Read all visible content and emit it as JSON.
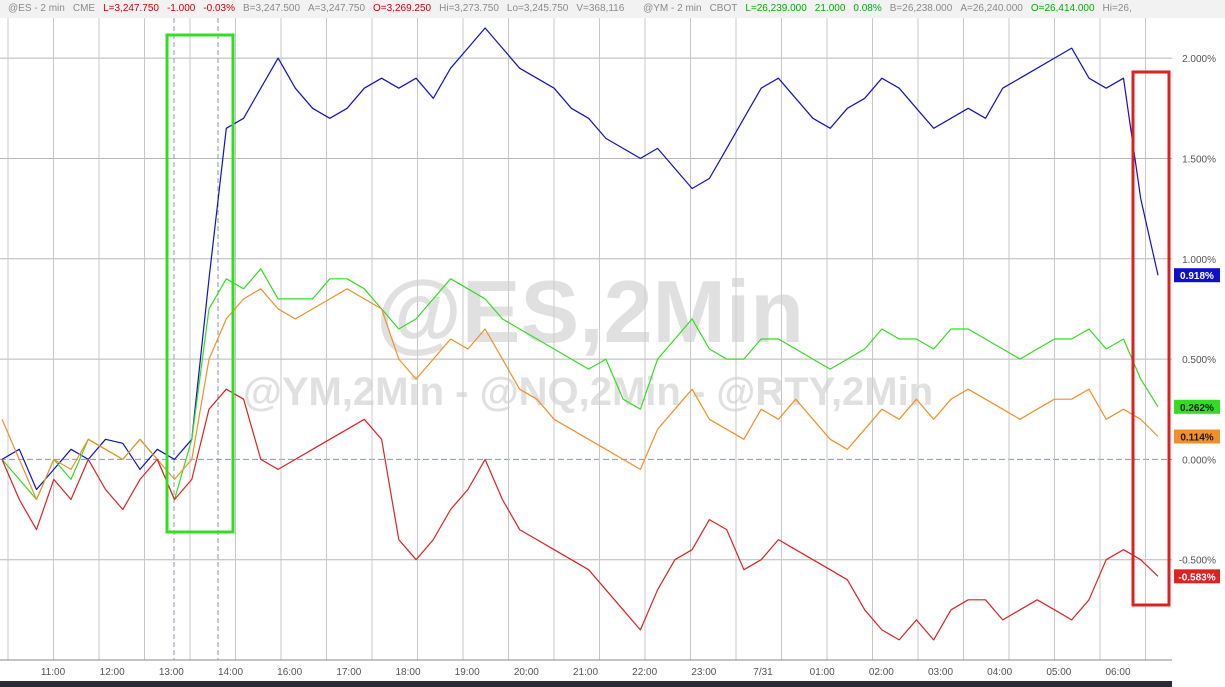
{
  "header": {
    "es_items": [
      {
        "text": "@ES - 2 min",
        "color": "gray"
      },
      {
        "text": "CME",
        "color": "gray"
      },
      {
        "text": "L=3,247.750",
        "color": "red"
      },
      {
        "text": "-1.000",
        "color": "red"
      },
      {
        "text": "-0.03%",
        "color": "red"
      },
      {
        "text": "B=3,247.500",
        "color": "gray"
      },
      {
        "text": "A=3,247.750",
        "color": "gray"
      },
      {
        "text": "O=3,269.250",
        "color": "red"
      },
      {
        "text": "Hi=3,273.750",
        "color": "gray"
      },
      {
        "text": "Lo=3,245.750",
        "color": "gray"
      },
      {
        "text": "V=368,116",
        "color": "gray"
      }
    ],
    "ym_items": [
      {
        "text": "@YM - 2 min",
        "color": "gray"
      },
      {
        "text": "CBOT",
        "color": "gray"
      },
      {
        "text": "L=26,239.000",
        "color": "green"
      },
      {
        "text": "21.000",
        "color": "green"
      },
      {
        "text": "0.08%",
        "color": "green"
      },
      {
        "text": "B=26,238.000",
        "color": "gray"
      },
      {
        "text": "A=26,240.000",
        "color": "gray"
      },
      {
        "text": "O=26,414.000",
        "color": "green"
      },
      {
        "text": "Hi=26,",
        "color": "gray"
      }
    ]
  },
  "watermark": {
    "line1": "@ES,2Min",
    "line2": "@YM,2Min - @NQ,2Min - @RTY,2Min"
  },
  "colors": {
    "es": "#1010c8",
    "ym": "#33dd22",
    "nq": "#f0902a",
    "rty": "#dd2222",
    "green_box": "#33dd22",
    "red_box": "#dd2020"
  },
  "chart_data": {
    "type": "line",
    "x_tick_labels": [
      "11:00",
      "12:00",
      "13:00",
      "14:00",
      "16:00",
      "17:00",
      "18:00",
      "19:00",
      "20:00",
      "21:00",
      "22:00",
      "23:00",
      "7/31",
      "01:00",
      "02:00",
      "03:00",
      "04:00",
      "05:00",
      "06:00"
    ],
    "y_tick_labels": [
      "2.000%",
      "1.500%",
      "1.000%",
      "0.500%",
      "0.000%",
      "-0.500%"
    ],
    "ylim": [
      -1.0,
      2.2
    ],
    "last_value_labels": {
      "es": "0.918%",
      "ym": "0.262%",
      "nq": "0.114%",
      "rty": "-0.583%"
    },
    "series": [
      {
        "key": "es",
        "values": [
          0.0,
          0.05,
          -0.15,
          -0.05,
          0.05,
          0.0,
          0.1,
          0.08,
          -0.05,
          0.05,
          0.0,
          0.1,
          0.9,
          1.65,
          1.7,
          1.85,
          2.0,
          1.85,
          1.75,
          1.7,
          1.75,
          1.85,
          1.9,
          1.85,
          1.9,
          1.8,
          1.95,
          2.05,
          2.15,
          2.05,
          1.95,
          1.9,
          1.85,
          1.75,
          1.7,
          1.6,
          1.55,
          1.5,
          1.55,
          1.45,
          1.35,
          1.4,
          1.55,
          1.7,
          1.85,
          1.9,
          1.8,
          1.7,
          1.65,
          1.75,
          1.8,
          1.9,
          1.85,
          1.75,
          1.65,
          1.7,
          1.75,
          1.7,
          1.85,
          1.9,
          1.95,
          2.0,
          2.05,
          1.9,
          1.85,
          1.9,
          1.3,
          0.918
        ]
      },
      {
        "key": "ym",
        "values": [
          0.0,
          -0.1,
          -0.2,
          0.0,
          -0.1,
          0.1,
          0.05,
          0.0,
          0.1,
          0.0,
          -0.2,
          0.1,
          0.75,
          0.9,
          0.85,
          0.95,
          0.8,
          0.8,
          0.8,
          0.9,
          0.9,
          0.85,
          0.75,
          0.65,
          0.7,
          0.8,
          0.9,
          0.85,
          0.8,
          0.7,
          0.65,
          0.6,
          0.55,
          0.5,
          0.45,
          0.5,
          0.3,
          0.25,
          0.5,
          0.6,
          0.7,
          0.55,
          0.5,
          0.5,
          0.6,
          0.6,
          0.55,
          0.5,
          0.45,
          0.5,
          0.55,
          0.65,
          0.6,
          0.6,
          0.55,
          0.65,
          0.65,
          0.6,
          0.55,
          0.5,
          0.55,
          0.6,
          0.6,
          0.65,
          0.55,
          0.6,
          0.4,
          0.262
        ]
      },
      {
        "key": "nq",
        "values": [
          0.2,
          0.0,
          -0.2,
          0.0,
          -0.05,
          0.1,
          0.05,
          0.0,
          0.1,
          0.0,
          -0.1,
          0.0,
          0.5,
          0.7,
          0.8,
          0.85,
          0.75,
          0.7,
          0.75,
          0.8,
          0.85,
          0.8,
          0.75,
          0.5,
          0.4,
          0.5,
          0.6,
          0.55,
          0.65,
          0.5,
          0.35,
          0.3,
          0.2,
          0.15,
          0.1,
          0.05,
          0.0,
          -0.05,
          0.15,
          0.25,
          0.35,
          0.2,
          0.15,
          0.1,
          0.25,
          0.2,
          0.3,
          0.2,
          0.1,
          0.05,
          0.15,
          0.25,
          0.2,
          0.3,
          0.2,
          0.3,
          0.35,
          0.3,
          0.25,
          0.2,
          0.25,
          0.3,
          0.3,
          0.35,
          0.2,
          0.25,
          0.2,
          0.114
        ]
      },
      {
        "key": "rty",
        "values": [
          0.0,
          -0.2,
          -0.35,
          -0.1,
          -0.2,
          0.0,
          -0.15,
          -0.25,
          -0.1,
          0.0,
          -0.2,
          -0.1,
          0.25,
          0.35,
          0.3,
          0.0,
          -0.05,
          0.0,
          0.05,
          0.1,
          0.15,
          0.2,
          0.1,
          -0.4,
          -0.5,
          -0.4,
          -0.25,
          -0.15,
          0.0,
          -0.2,
          -0.35,
          -0.4,
          -0.45,
          -0.5,
          -0.55,
          -0.65,
          -0.75,
          -0.85,
          -0.65,
          -0.5,
          -0.45,
          -0.3,
          -0.35,
          -0.55,
          -0.5,
          -0.4,
          -0.45,
          -0.5,
          -0.55,
          -0.6,
          -0.75,
          -0.85,
          -0.9,
          -0.8,
          -0.9,
          -0.75,
          -0.7,
          -0.7,
          -0.8,
          -0.75,
          -0.7,
          -0.75,
          -0.8,
          -0.7,
          -0.5,
          -0.45,
          -0.5,
          -0.583
        ]
      }
    ]
  }
}
